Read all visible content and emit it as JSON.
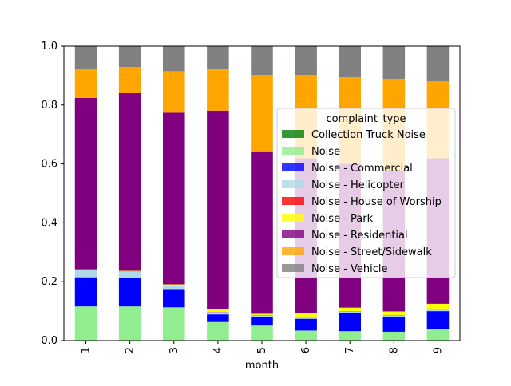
{
  "chart_data": {
    "type": "bar",
    "stacked": true,
    "normalized": true,
    "xlabel": "month",
    "ylabel": "",
    "ylim": [
      0,
      1.0
    ],
    "yticks": [
      0.0,
      0.2,
      0.4,
      0.6,
      0.8,
      1.0
    ],
    "ytick_labels": [
      "0.0",
      "0.2",
      "0.4",
      "0.6",
      "0.8",
      "1.0"
    ],
    "categories": [
      "1",
      "2",
      "3",
      "4",
      "5",
      "6",
      "7",
      "8",
      "9"
    ],
    "grid": false,
    "legend": {
      "title": "complaint_type",
      "placement": "center-right",
      "alpha": 0.8
    },
    "series": [
      {
        "name": "Collection Truck Noise",
        "color": "#008000",
        "values": [
          0,
          0,
          0,
          0,
          0,
          0,
          0,
          0,
          0
        ]
      },
      {
        "name": "Noise",
        "color": "#90ee90",
        "values": [
          0.116,
          0.116,
          0.113,
          0.063,
          0.051,
          0.034,
          0.032,
          0.03,
          0.04
        ]
      },
      {
        "name": "Noise - Commercial",
        "color": "#0000ff",
        "values": [
          0.099,
          0.096,
          0.062,
          0.026,
          0.029,
          0.04,
          0.061,
          0.05,
          0.06
        ]
      },
      {
        "name": "Noise - Helicopter",
        "color": "#add8e6",
        "values": [
          0.024,
          0.022,
          0.01,
          0.008,
          0.006,
          0.006,
          0.006,
          0.006,
          0.006
        ]
      },
      {
        "name": "Noise - House of Worship",
        "color": "#ff0000",
        "values": [
          0.001,
          0.001,
          0.001,
          0.001,
          0.001,
          0.001,
          0.001,
          0.001,
          0.001
        ]
      },
      {
        "name": "Noise - Park",
        "color": "#ffff00",
        "values": [
          0.002,
          0.002,
          0.005,
          0.008,
          0.004,
          0.012,
          0.012,
          0.012,
          0.018
        ]
      },
      {
        "name": "Noise - Residential",
        "color": "#800080",
        "values": [
          0.582,
          0.605,
          0.583,
          0.675,
          0.552,
          0.526,
          0.488,
          0.478,
          0.494
        ]
      },
      {
        "name": "Noise - Street/Sidewalk",
        "color": "#ffa500",
        "values": [
          0.098,
          0.087,
          0.141,
          0.14,
          0.259,
          0.283,
          0.297,
          0.312,
          0.263
        ]
      },
      {
        "name": "Noise - Vehicle",
        "color": "#808080",
        "values": [
          0.078,
          0.071,
          0.085,
          0.079,
          0.098,
          0.098,
          0.103,
          0.111,
          0.118
        ]
      }
    ]
  }
}
